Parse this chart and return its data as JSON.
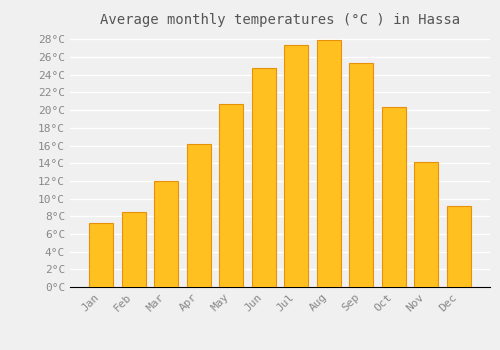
{
  "title": "Average monthly temperatures (°C ) in Hassa",
  "months": [
    "Jan",
    "Feb",
    "Mar",
    "Apr",
    "May",
    "Jun",
    "Jul",
    "Aug",
    "Sep",
    "Oct",
    "Nov",
    "Dec"
  ],
  "values": [
    7.2,
    8.5,
    12.0,
    16.2,
    20.7,
    24.8,
    27.4,
    27.9,
    25.3,
    20.4,
    14.1,
    9.2
  ],
  "bar_color": "#FFC020",
  "bar_edge_color": "#E8900A",
  "background_color": "#F0F0F0",
  "grid_color": "#FFFFFF",
  "tick_label_color": "#888888",
  "title_color": "#555555",
  "ylim": [
    0,
    28
  ],
  "ytick_values": [
    0,
    2,
    4,
    6,
    8,
    10,
    12,
    14,
    16,
    18,
    20,
    22,
    24,
    26,
    28
  ],
  "title_fontsize": 10,
  "tick_fontsize": 8,
  "bar_width": 0.75
}
